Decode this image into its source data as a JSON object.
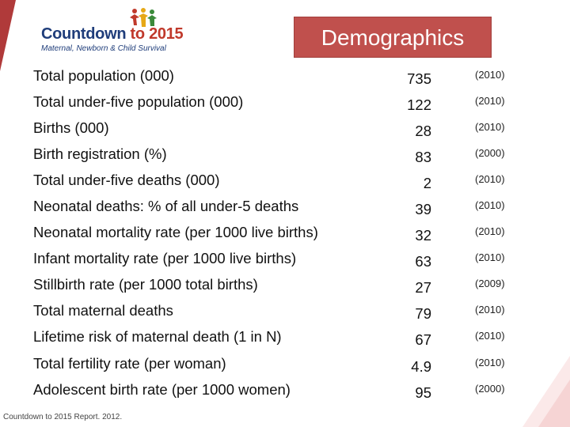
{
  "logo": {
    "brand_main": "Countdown ",
    "brand_accent": "to 2015",
    "tagline": "Maternal, Newborn & Child Survival"
  },
  "title": "Demographics",
  "rows": [
    {
      "label": "Total population (000)",
      "value": "735",
      "year": "(2010)"
    },
    {
      "label": "Total under-five population (000)",
      "value": "122",
      "year": "(2010)"
    },
    {
      "label": "Births (000)",
      "value": "28",
      "year": "(2010)"
    },
    {
      "label": "Birth registration (%)",
      "value": "83",
      "year": "(2000)"
    },
    {
      "label": "Total under-five deaths (000)",
      "value": "2",
      "year": "(2010)"
    },
    {
      "label": "Neonatal deaths: % of all under-5 deaths",
      "value": "39",
      "year": "(2010)"
    },
    {
      "label": "Neonatal mortality rate (per 1000 live births)",
      "value": "32",
      "year": "(2010)"
    },
    {
      "label": "Infant mortality rate (per 1000 live births)",
      "value": "63",
      "year": "(2010)"
    },
    {
      "label": "Stillbirth rate (per 1000 total births)",
      "value": "27",
      "year": "(2009)"
    },
    {
      "label": "Total maternal deaths",
      "value": "79",
      "year": "(2010)"
    },
    {
      "label": "Lifetime risk of maternal death (1 in N)",
      "value": "67",
      "year": "(2010)"
    },
    {
      "label": "Total fertility rate (per woman)",
      "value": "4.9",
      "year": "(2010)"
    },
    {
      "label": "Adolescent birth rate (per 1000 women)",
      "value": "95",
      "year": "(2000)"
    }
  ],
  "footer": "Countdown to 2015 Report. 2012.",
  "colors": {
    "title_bg": "#c0504d",
    "brand_blue": "#1f3d7a",
    "brand_red": "#c0392b"
  }
}
